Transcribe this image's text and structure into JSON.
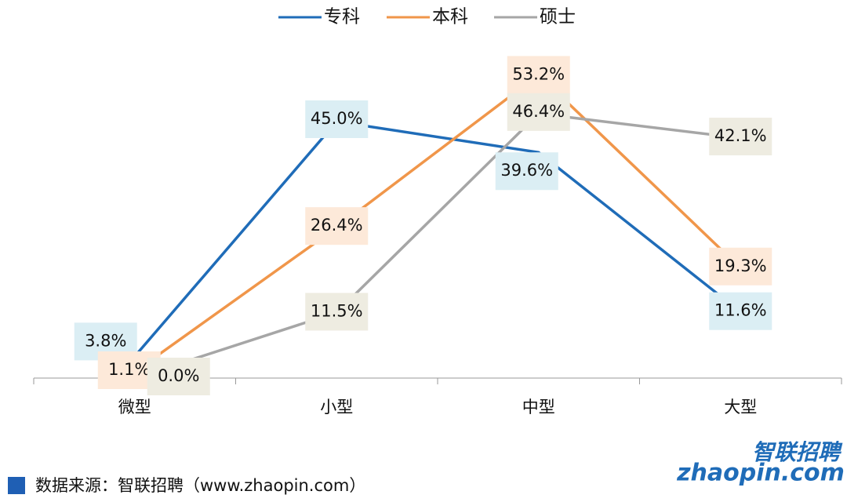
{
  "chart_data": {
    "type": "line",
    "categories": [
      "微型",
      "小型",
      "中型",
      "大型"
    ],
    "series": [
      {
        "name": "专科",
        "color": "#1f6cb8",
        "values": [
          3.8,
          45.0,
          39.6,
          11.6
        ],
        "value_labels": [
          "3.8%",
          "45.0%",
          "39.6%",
          "11.6%"
        ],
        "label_bg": "#dbeef4"
      },
      {
        "name": "本科",
        "color": "#f0964a",
        "values": [
          1.1,
          26.4,
          53.2,
          19.3
        ],
        "value_labels": [
          "1.1%",
          "26.4%",
          "53.2%",
          "19.3%"
        ],
        "label_bg": "#fde9d9"
      },
      {
        "name": "硕士",
        "color": "#a6a6a6",
        "values": [
          0.0,
          11.5,
          46.4,
          42.1
        ],
        "value_labels": [
          "0.0%",
          "11.5%",
          "46.4%",
          "42.1%"
        ],
        "label_bg": "#eeece1"
      }
    ],
    "ylim": [
      0,
      60
    ],
    "legend": "top",
    "source": "数据来源：智联招聘（www.zhaopin.com）",
    "logo": {
      "top": "智联招聘",
      "bottom": "zhaopin.com"
    }
  }
}
